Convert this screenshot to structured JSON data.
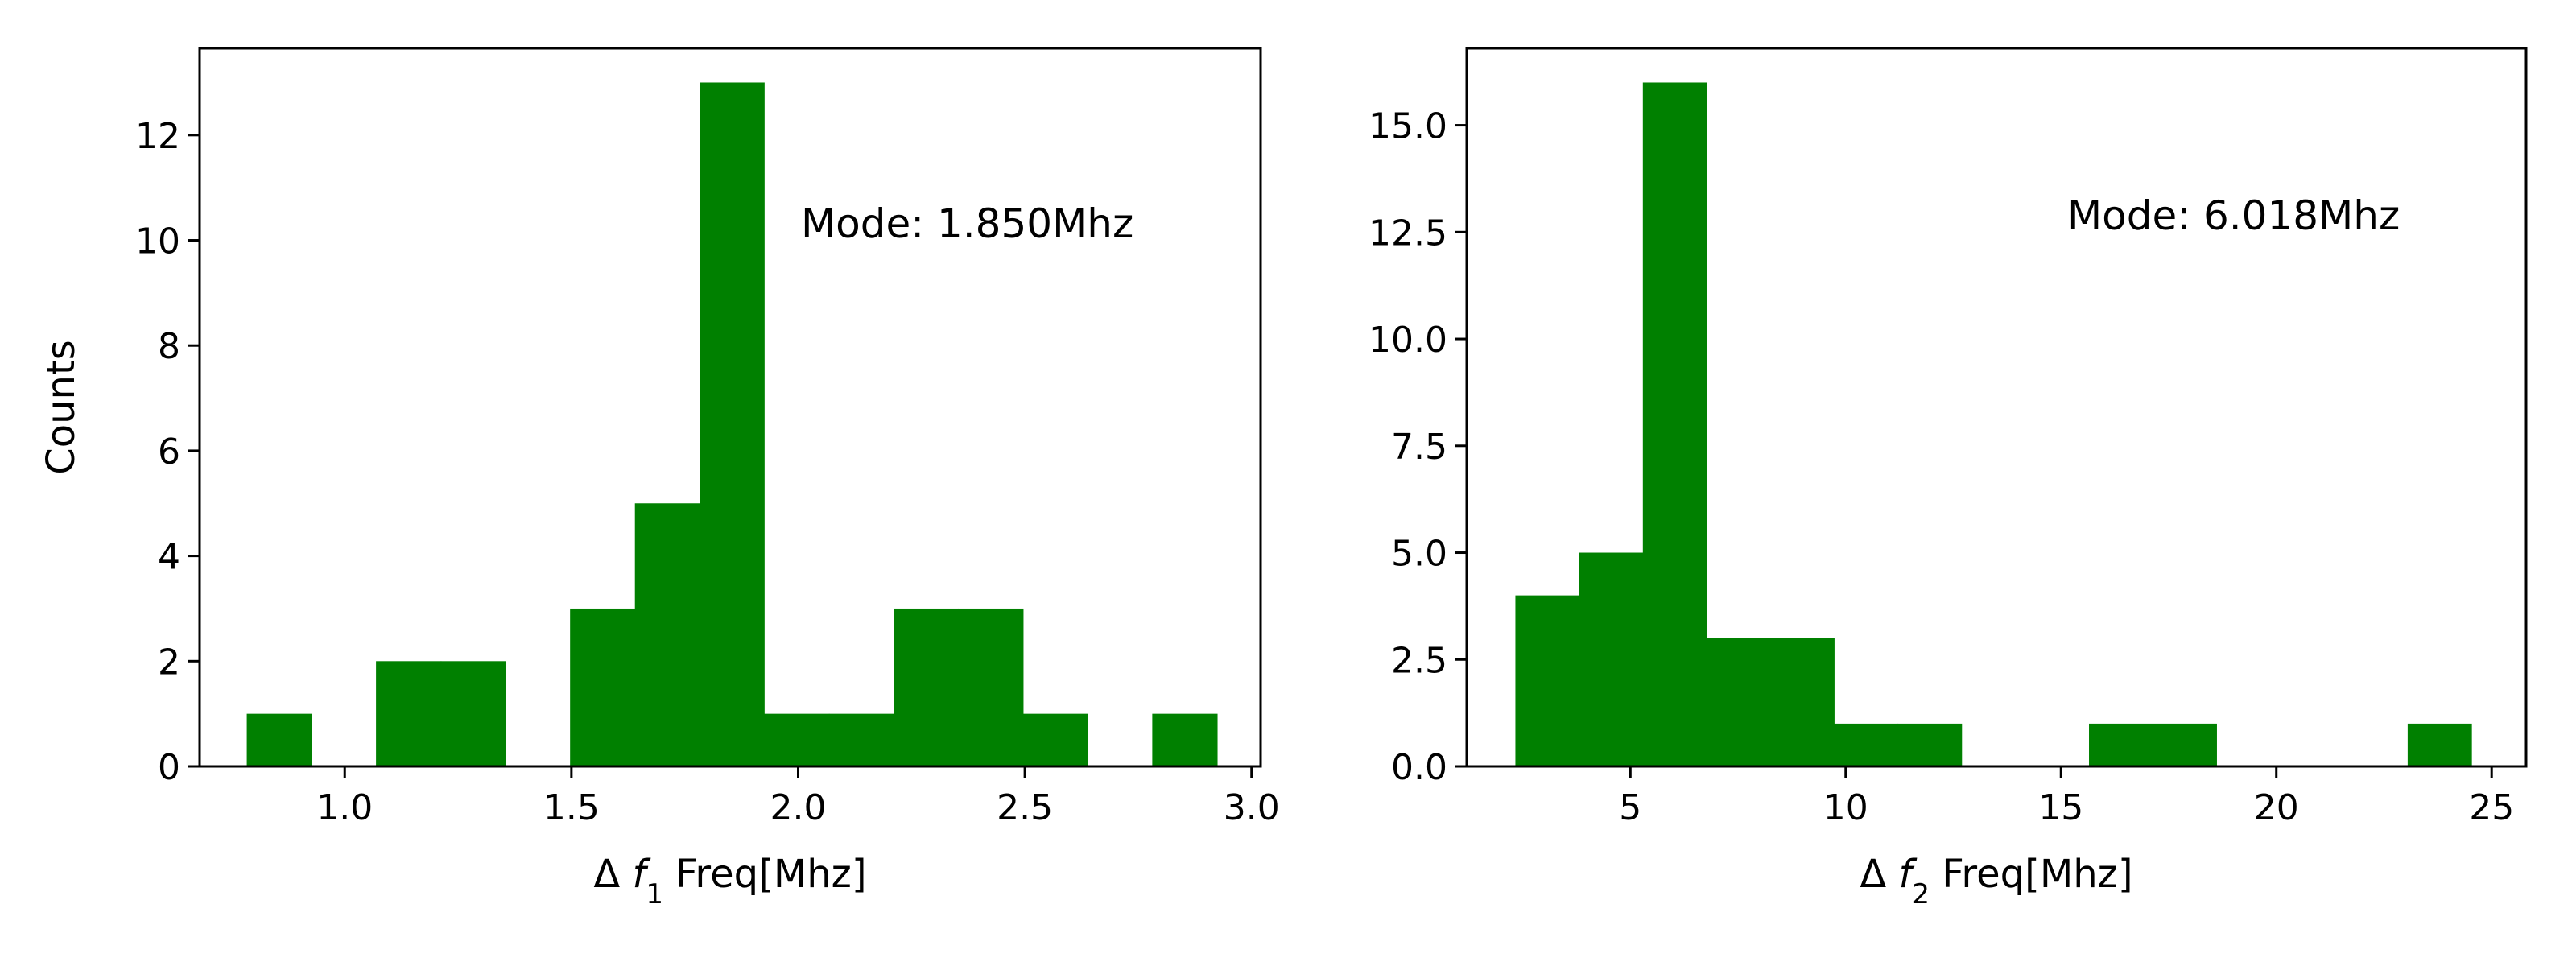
{
  "chart_data": [
    {
      "type": "bar",
      "subtype": "histogram",
      "color": "#008000",
      "ylabel": "Counts",
      "xlabel": {
        "prefix": "Δ ",
        "var": "f",
        "sub": "1",
        "suffix": " Freq[Mhz]"
      },
      "annotation": "Mode: 1.850Mhz",
      "xlim": [
        0.68,
        3.02
      ],
      "ylim": [
        0,
        13.65
      ],
      "xticks": [
        1.0,
        1.5,
        2.0,
        2.5,
        3.0
      ],
      "xtick_labels": [
        "1.0",
        "1.5",
        "2.0",
        "2.5",
        "3.0"
      ],
      "yticks": [
        0,
        2,
        4,
        6,
        8,
        10,
        12
      ],
      "ytick_labels": [
        "0",
        "2",
        "4",
        "6",
        "8",
        "10",
        "12"
      ],
      "bins": [
        {
          "x0": 0.784,
          "x1": 0.927,
          "count": 1
        },
        {
          "x0": 0.927,
          "x1": 1.069,
          "count": 0
        },
        {
          "x0": 1.069,
          "x1": 1.212,
          "count": 2
        },
        {
          "x0": 1.212,
          "x1": 1.355,
          "count": 2
        },
        {
          "x0": 1.355,
          "x1": 1.497,
          "count": 0
        },
        {
          "x0": 1.497,
          "x1": 1.64,
          "count": 3
        },
        {
          "x0": 1.64,
          "x1": 1.783,
          "count": 5
        },
        {
          "x0": 1.783,
          "x1": 1.925,
          "count": 13
        },
        {
          "x0": 1.925,
          "x1": 2.068,
          "count": 1
        },
        {
          "x0": 2.068,
          "x1": 2.211,
          "count": 1
        },
        {
          "x0": 2.211,
          "x1": 2.353,
          "count": 3
        },
        {
          "x0": 2.353,
          "x1": 2.496,
          "count": 3
        },
        {
          "x0": 2.496,
          "x1": 2.639,
          "count": 1
        },
        {
          "x0": 2.639,
          "x1": 2.781,
          "count": 0
        },
        {
          "x0": 2.781,
          "x1": 2.924,
          "count": 1
        }
      ]
    },
    {
      "type": "bar",
      "subtype": "histogram",
      "color": "#008000",
      "ylabel": "",
      "xlabel": {
        "prefix": "Δ ",
        "var": "f",
        "sub": "2",
        "suffix": " Freq[Mhz]"
      },
      "annotation": "Mode: 6.018Mhz",
      "xlim": [
        1.2,
        25.8
      ],
      "ylim": [
        0,
        16.8
      ],
      "xticks": [
        5,
        10,
        15,
        20,
        25
      ],
      "xtick_labels": [
        "5",
        "10",
        "15",
        "20",
        "25"
      ],
      "yticks": [
        0,
        2.5,
        5,
        7.5,
        10,
        12.5,
        15
      ],
      "ytick_labels": [
        "0.0",
        "2.5",
        "5.0",
        "7.5",
        "10.0",
        "12.5",
        "15.0"
      ],
      "bins": [
        {
          "x0": 2.33,
          "x1": 3.81,
          "count": 4
        },
        {
          "x0": 3.81,
          "x1": 5.29,
          "count": 5
        },
        {
          "x0": 5.29,
          "x1": 6.77,
          "count": 16
        },
        {
          "x0": 6.77,
          "x1": 8.25,
          "count": 3
        },
        {
          "x0": 8.25,
          "x1": 9.73,
          "count": 3
        },
        {
          "x0": 9.73,
          "x1": 11.21,
          "count": 1
        },
        {
          "x0": 11.21,
          "x1": 12.69,
          "count": 1
        },
        {
          "x0": 12.69,
          "x1": 14.17,
          "count": 0
        },
        {
          "x0": 14.17,
          "x1": 15.65,
          "count": 0
        },
        {
          "x0": 15.65,
          "x1": 17.13,
          "count": 1
        },
        {
          "x0": 17.13,
          "x1": 18.61,
          "count": 1
        },
        {
          "x0": 18.61,
          "x1": 20.09,
          "count": 0
        },
        {
          "x0": 20.09,
          "x1": 21.57,
          "count": 0
        },
        {
          "x0": 21.57,
          "x1": 23.05,
          "count": 0
        },
        {
          "x0": 23.05,
          "x1": 24.53,
          "count": 1
        }
      ]
    }
  ]
}
